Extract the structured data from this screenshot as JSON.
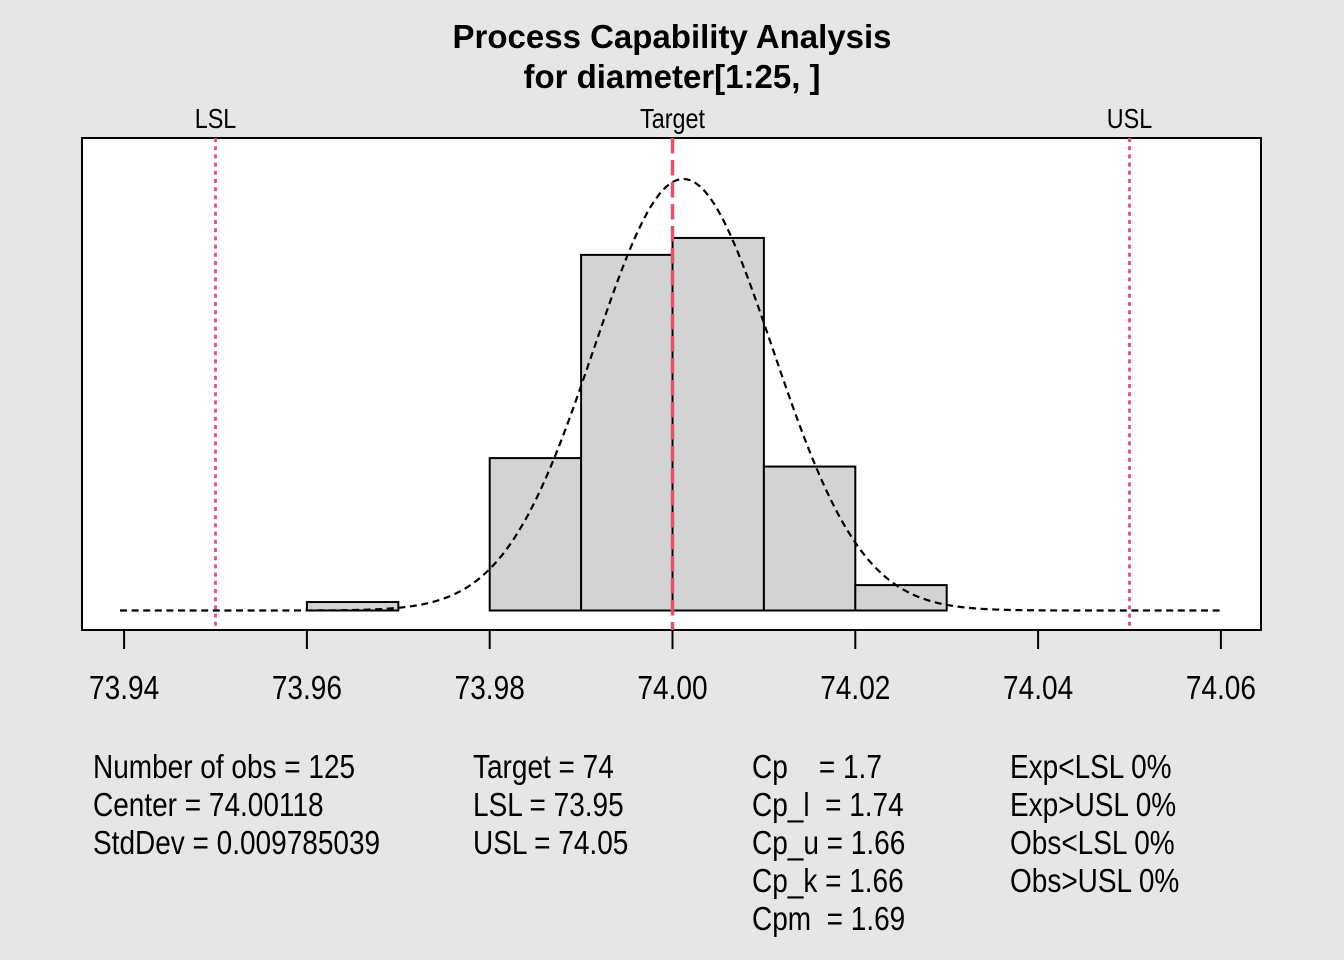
{
  "title": {
    "line1": "Process Capability Analysis",
    "line2": "for diameter[1:25, ]"
  },
  "chart_data": {
    "type": "histogram",
    "x_ticks": [
      {
        "value": 73.94,
        "label": "73.94"
      },
      {
        "value": 73.96,
        "label": "73.96"
      },
      {
        "value": 73.98,
        "label": "73.98"
      },
      {
        "value": 74.0,
        "label": "74.00"
      },
      {
        "value": 74.02,
        "label": "74.02"
      },
      {
        "value": 74.04,
        "label": "74.04"
      },
      {
        "value": 74.06,
        "label": "74.06"
      }
    ],
    "xlim": [
      73.94,
      74.06
    ],
    "bins": {
      "start": 73.96,
      "bin_width": 0.01,
      "counts": [
        1,
        0,
        18,
        42,
        44,
        17,
        3
      ]
    },
    "n_obs": 125,
    "normal_curve": {
      "mean": 74.00118,
      "sd": 0.009785039
    },
    "spec_lines": [
      {
        "id": "lsl",
        "label": "LSL",
        "value": 73.95,
        "style": "dotted"
      },
      {
        "id": "target",
        "label": "Target",
        "value": 74.0,
        "style": "dashed"
      },
      {
        "id": "usl",
        "label": "USL",
        "value": 74.05,
        "style": "dotted"
      }
    ],
    "colors": {
      "background": "#e6e6e6",
      "plot_bg": "#ffffff",
      "bar_fill": "#d3d3d3",
      "bar_border": "#000000",
      "curve": "#000000",
      "spec": "#df536b"
    },
    "grid": false,
    "legend": false
  },
  "stats": {
    "col1": [
      "Number of obs = 125",
      "Center = 74.00118",
      "StdDev = 0.009785039"
    ],
    "col2": [
      "Target = 74",
      "LSL = 73.95",
      "USL = 74.05"
    ],
    "col3": [
      "Cp    = 1.7",
      "Cp_l  = 1.74",
      "Cp_u = 1.66",
      "Cp_k = 1.66",
      "Cpm  = 1.69"
    ],
    "col4": [
      "Exp<LSL 0%",
      "Exp>USL 0%",
      "Obs<LSL 0%",
      "Obs>USL 0%"
    ]
  }
}
